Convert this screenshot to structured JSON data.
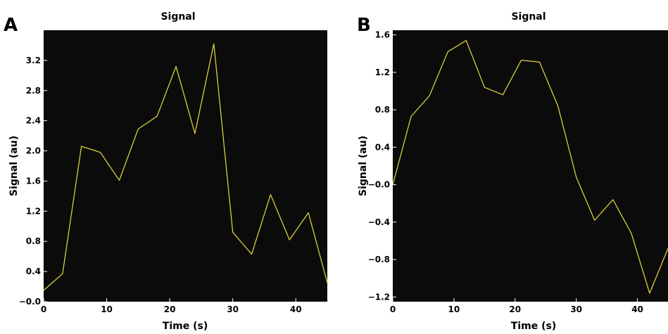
{
  "chart_data": [
    {
      "panel": "A",
      "type": "line",
      "title": "Signal",
      "xlabel": "Time (s)",
      "ylabel": "Signal (au)",
      "xlim": [
        0,
        45
      ],
      "ylim": [
        0,
        3.6
      ],
      "xticks": [
        0,
        10,
        20,
        30,
        40
      ],
      "xtick_labels": [
        "0",
        "10",
        "20",
        "30",
        "40"
      ],
      "yticks": [
        0,
        0.4,
        0.8,
        1.2,
        1.6,
        2.0,
        2.4,
        2.8,
        3.2
      ],
      "ytick_labels": [
        "−0.0",
        "0.4",
        "0.8",
        "1.2",
        "1.6",
        "2.0",
        "2.4",
        "2.8",
        "3.2"
      ],
      "grid": false,
      "background": "#0b0b0b",
      "series": [
        {
          "color": "#d8cf3a",
          "x": [
            0,
            3,
            6,
            9,
            12,
            15,
            18,
            21,
            24,
            27,
            30,
            33,
            36,
            39,
            42,
            45
          ],
          "y": [
            0.15,
            0.37,
            2.06,
            1.98,
            1.61,
            2.29,
            2.46,
            3.12,
            2.23,
            3.42,
            0.92,
            0.63,
            1.42,
            0.82,
            1.18,
            0.25
          ]
        }
      ]
    },
    {
      "panel": "B",
      "type": "line",
      "title": "Signal",
      "xlabel": "Time (s)",
      "ylabel": "Signal (au)",
      "xlim": [
        0,
        45
      ],
      "ylim": [
        -1.25,
        1.65
      ],
      "xticks": [
        0,
        10,
        20,
        30,
        40
      ],
      "xtick_labels": [
        "0",
        "10",
        "20",
        "30",
        "40"
      ],
      "yticks": [
        -1.2,
        -0.8,
        -0.4,
        0.0,
        0.4,
        0.8,
        1.2,
        1.6
      ],
      "ytick_labels": [
        "−1.2",
        "−0.8",
        "−0.4",
        "−0.0",
        "0.4",
        "0.8",
        "1.2",
        "1.6"
      ],
      "grid": false,
      "background": "#0b0b0b",
      "series": [
        {
          "color": "#d8cf3a",
          "x": [
            0,
            3,
            6,
            9,
            12,
            15,
            18,
            21,
            24,
            27,
            30,
            33,
            36,
            39,
            42,
            45
          ],
          "y": [
            0.0,
            0.73,
            0.95,
            1.42,
            1.54,
            1.04,
            0.96,
            1.33,
            1.31,
            0.84,
            0.08,
            -0.38,
            -0.16,
            -0.52,
            -1.16,
            -0.68
          ]
        }
      ]
    }
  ]
}
